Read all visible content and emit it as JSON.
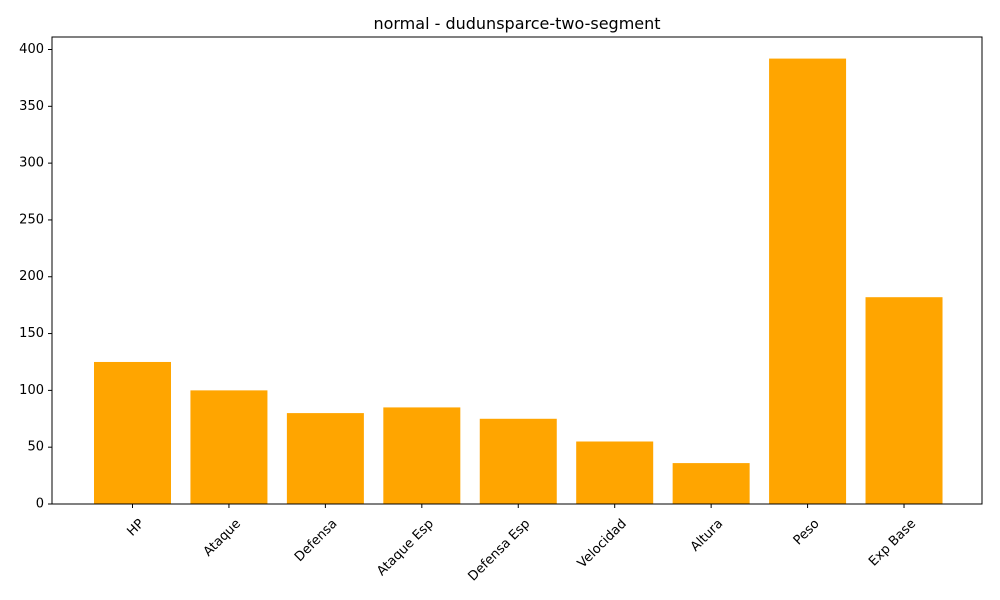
{
  "chart_data": {
    "type": "bar",
    "title": "normal - dudunsparce-two-segment",
    "xlabel": "",
    "ylabel": "",
    "categories": [
      "HP",
      "Ataque",
      "Defensa",
      "Ataque Esp",
      "Defensa Esp",
      "Velocidad",
      "Altura",
      "Peso",
      "Exp Base"
    ],
    "values": [
      125,
      100,
      80,
      85,
      75,
      55,
      36,
      392,
      182
    ],
    "ylim": [
      0,
      411
    ],
    "yticks": [
      0,
      50,
      100,
      150,
      200,
      250,
      300,
      350,
      400
    ],
    "bar_color": "#FFA500",
    "grid": false,
    "legend": "none"
  }
}
